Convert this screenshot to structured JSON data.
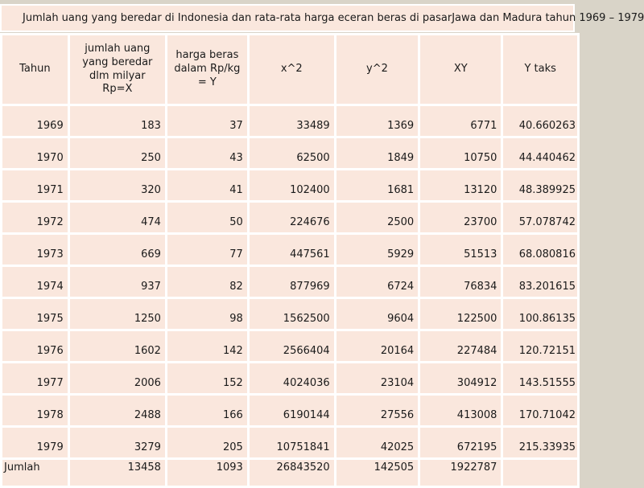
{
  "title": "Jumlah uang yang beredar di Indonesia dan rata-rata harga eceran beras di pasarJawa dan Madura tahun 1969 – 1979",
  "table": {
    "columns": [
      "Tahun",
      "jumlah uang yang beredar dlm milyar Rp=X",
      "harga beras dalam Rp/kg = Y",
      "x^2",
      "y^2",
      "XY",
      "Y taks"
    ],
    "rows": [
      [
        "1969",
        "183",
        "37",
        "33489",
        "1369",
        "6771",
        "40.660263"
      ],
      [
        "1970",
        "250",
        "43",
        "62500",
        "1849",
        "10750",
        "44.440462"
      ],
      [
        "1971",
        "320",
        "41",
        "102400",
        "1681",
        "13120",
        "48.389925"
      ],
      [
        "1972",
        "474",
        "50",
        "224676",
        "2500",
        "23700",
        "57.078742"
      ],
      [
        "1973",
        "669",
        "77",
        "447561",
        "5929",
        "51513",
        "68.080816"
      ],
      [
        "1974",
        "937",
        "82",
        "877969",
        "6724",
        "76834",
        "83.201615"
      ],
      [
        "1975",
        "1250",
        "98",
        "1562500",
        "9604",
        "122500",
        "100.86135"
      ],
      [
        "1976",
        "1602",
        "142",
        "2566404",
        "20164",
        "227484",
        "120.72151"
      ],
      [
        "1977",
        "2006",
        "152",
        "4024036",
        "23104",
        "304912",
        "143.51555"
      ],
      [
        "1978",
        "2488",
        "166",
        "6190144",
        "27556",
        "413008",
        "170.71042"
      ],
      [
        "1979",
        "3279",
        "205",
        "10751841",
        "42025",
        "672195",
        "215.33935"
      ]
    ],
    "total_row": [
      "Jumlah",
      "13458",
      "1093",
      "26843520",
      "142505",
      "1922787",
      ""
    ]
  },
  "colors": {
    "cell_fill": "#FAE7DD",
    "gridline": "#FFFFFF",
    "window_background": "#D9D4C8",
    "text": "#1A1A1A"
  }
}
